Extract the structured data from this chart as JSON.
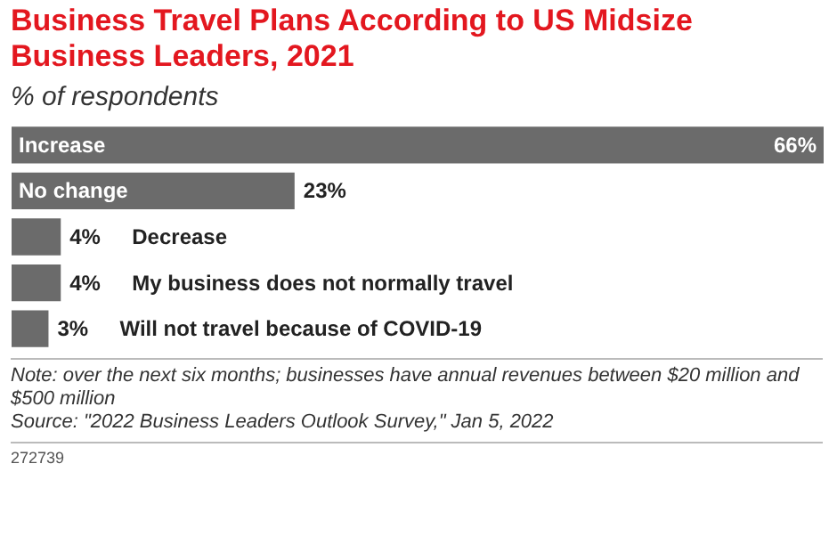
{
  "chart_data": {
    "type": "bar",
    "orientation": "horizontal",
    "title": "Business Travel Plans According to US Midsize Business Leaders, 2021",
    "subtitle": "% of respondents",
    "categories": [
      "Increase",
      "No change",
      "Decrease",
      "My business does not normally travel",
      "Will not travel because of COVID-19"
    ],
    "values": [
      66,
      23,
      4,
      4,
      3
    ],
    "value_labels": [
      "66%",
      "23%",
      "4%",
      "4%",
      "3%"
    ],
    "color": "#6b6b6b",
    "annotations": [
      "Note: over the next six months; businesses have annual revenues between $20 million and $500 million",
      "Source: \"2022 Business Leaders Outlook Survey,\" Jan 5, 2022",
      "272739"
    ]
  }
}
